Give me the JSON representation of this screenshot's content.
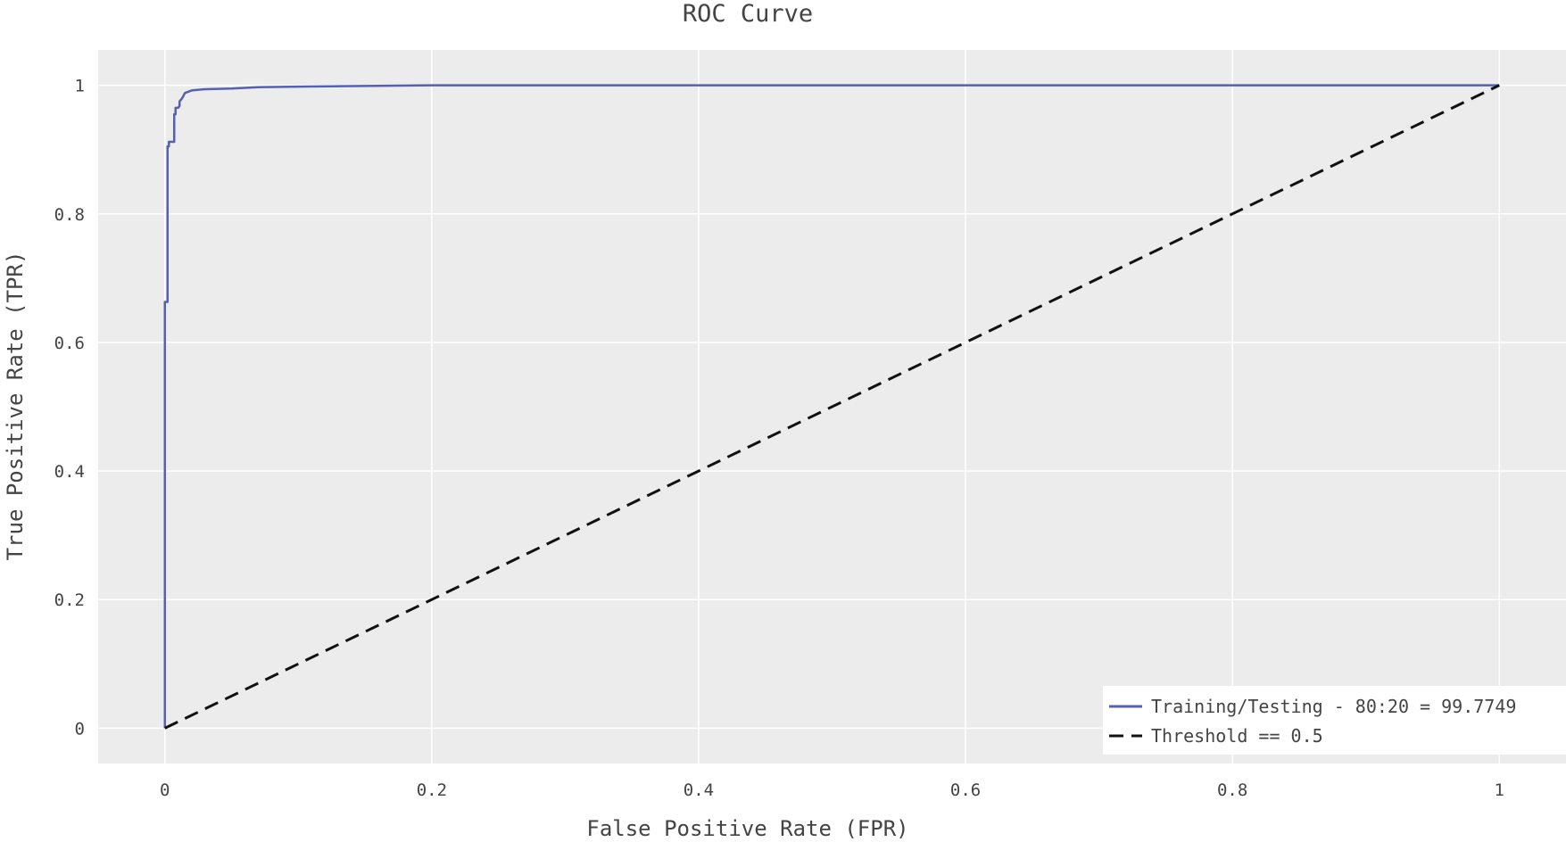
{
  "chart_data": {
    "type": "line",
    "title": "ROC Curve",
    "xlabel": "False Positive Rate (FPR)",
    "ylabel": "True Positive Rate (TPR)",
    "xlim": [
      -0.05,
      1.05
    ],
    "ylim": [
      -0.055,
      1.055
    ],
    "xticks": [
      0,
      0.2,
      0.4,
      0.6,
      0.8,
      1
    ],
    "xtick_labels": [
      "0",
      "0.2",
      "0.4",
      "0.6",
      "0.8",
      "1"
    ],
    "yticks": [
      0,
      0.2,
      0.4,
      0.6,
      0.8,
      1
    ],
    "ytick_labels": [
      "0",
      "0.2",
      "0.4",
      "0.6",
      "0.8",
      "1"
    ],
    "grid": true,
    "legend_position": "bottom-right",
    "series": [
      {
        "name": "Training/Testing - 80:20 = 99.7749",
        "color": "#5561b0",
        "dash": "solid",
        "x": [
          0,
          0,
          0.002,
          0.002,
          0.003,
          0.003,
          0.007,
          0.007,
          0.008,
          0.008,
          0.01,
          0.011,
          0.011,
          0.013,
          0.015,
          0.02,
          0.03,
          0.05,
          0.07,
          0.1,
          0.15,
          0.2,
          0.3,
          0.5,
          0.7,
          1
        ],
        "y": [
          0,
          0.663,
          0.663,
          0.905,
          0.905,
          0.912,
          0.912,
          0.955,
          0.955,
          0.965,
          0.965,
          0.968,
          0.975,
          0.98,
          0.988,
          0.992,
          0.994,
          0.995,
          0.997,
          0.998,
          0.999,
          1,
          1,
          1,
          1,
          1
        ]
      },
      {
        "name": "Threshold == 0.5",
        "color": "#111111",
        "dash": "dashed",
        "x": [
          0,
          1
        ],
        "y": [
          0,
          1
        ]
      }
    ]
  }
}
